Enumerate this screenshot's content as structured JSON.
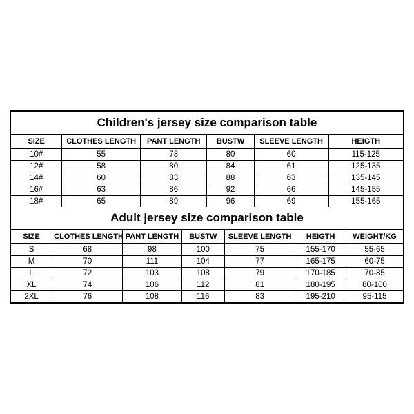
{
  "children_table": {
    "title": "Children's jersey size comparison table",
    "type": "table",
    "title_fontsize": 17,
    "header_fontsize": 11,
    "cell_fontsize": 11.5,
    "border_color": "#000000",
    "background_color": "#ffffff",
    "columns": [
      "SIZE",
      "CLOTHES LENGTH",
      "PANT LENGTH",
      "BUSTW",
      "SLEEVE LENGTH",
      "HEIGTH"
    ],
    "column_widths_pct": [
      13,
      20,
      17,
      12,
      19,
      19
    ],
    "rows": [
      [
        "10#",
        "55",
        "78",
        "80",
        "60",
        "115-125"
      ],
      [
        "12#",
        "58",
        "80",
        "84",
        "61",
        "125-135"
      ],
      [
        "14#",
        "60",
        "83",
        "88",
        "63",
        "135-145"
      ],
      [
        "16#",
        "63",
        "86",
        "92",
        "66",
        "145-155"
      ],
      [
        "18#",
        "65",
        "89",
        "96",
        "69",
        "155-165"
      ]
    ]
  },
  "adult_table": {
    "title": "Adult jersey size comparison table",
    "type": "table",
    "title_fontsize": 17,
    "header_fontsize": 11,
    "cell_fontsize": 11.5,
    "border_color": "#000000",
    "background_color": "#ffffff",
    "columns": [
      "SIZE",
      "CLOTHES LENGTH",
      "PANT LENGTH",
      "BUSTW",
      "SLEEVE LENGTH",
      "HEIGTH",
      "WEIGHT/KG"
    ],
    "column_widths_pct": [
      10.5,
      18,
      15,
      11,
      18,
      13,
      14.5
    ],
    "rows": [
      [
        "S",
        "68",
        "98",
        "100",
        "75",
        "155-170",
        "55-65"
      ],
      [
        "M",
        "70",
        "111",
        "104",
        "77",
        "165-175",
        "60-75"
      ],
      [
        "L",
        "72",
        "103",
        "108",
        "79",
        "170-185",
        "70-85"
      ],
      [
        "XL",
        "74",
        "106",
        "112",
        "81",
        "180-195",
        "80-100"
      ],
      [
        "2XL",
        "76",
        "108",
        "116",
        "83",
        "195-210",
        "95-115"
      ]
    ]
  }
}
